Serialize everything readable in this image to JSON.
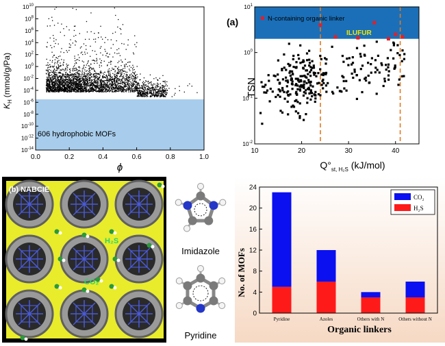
{
  "chart_data": [
    {
      "type": "scatter",
      "xlabel": "ϕ",
      "ylabel_main": "K",
      "ylabel_sub": "H",
      "ylabel_unit": "(mmol/g/Pa)",
      "xlim": [
        0,
        1
      ],
      "ylim_exp": [
        -14,
        10
      ],
      "x_ticks": [
        "0.0",
        "0.2",
        "0.4",
        "0.6",
        "0.8",
        "1.0"
      ],
      "y_tick_exponents": [
        "10",
        "8",
        "6",
        "4",
        "2",
        "0",
        "-2",
        "-4",
        "-6",
        "-8",
        "-10",
        "-12",
        "-14"
      ],
      "y_scale": "log",
      "threshold_log10": -5.5,
      "region_label": "606 hydrophobic MOFs",
      "region_color": "#a8cdec",
      "point_color": "#000000",
      "n_points_description": "dense cloud concentrated near K_H 1e-5 to 1e-2, spreading up to 1e10"
    },
    {
      "type": "scatter",
      "panel_label": "(a)",
      "xlabel_main": "Q°",
      "xlabel_sub": "st, H₂S",
      "xlabel_unit": "(kJ/mol)",
      "ylabel": "TSN",
      "xlim": [
        10,
        45
      ],
      "ylim_exp": [
        -2,
        1
      ],
      "x_ticks": [
        "10",
        "20",
        "30",
        "40"
      ],
      "y_tick_exponents": [
        "1",
        "0",
        "-1",
        "-2"
      ],
      "y_scale": "log",
      "highlight_band_log10": [
        0.3,
        1
      ],
      "band_color": "#1a6fb8",
      "dashed_lines_x": [
        24,
        41
      ],
      "dashed_color": "#e07a20",
      "legend": "N-containing organic linker",
      "annotation": "ILUFUR",
      "annotation_color": "#f2e800",
      "highlight_points": [
        [
          27.2,
          2.2
        ],
        [
          35.5,
          4.5
        ],
        [
          40.0,
          2.5
        ],
        [
          41.5,
          2.2
        ],
        [
          24.0,
          4.0
        ],
        [
          38.5,
          2.0
        ],
        [
          32.0,
          2.1
        ]
      ]
    },
    {
      "type": "bar",
      "ylabel": "No. of MOFs",
      "xlabel": "Organic linkers",
      "categories": [
        "Pyridine",
        "Azoles",
        "Others with N",
        "Others without N"
      ],
      "series": [
        {
          "name": "H₂S",
          "values": [
            5,
            6,
            3,
            3
          ],
          "color": "#ff1a1a"
        },
        {
          "name": "CO₂",
          "values": [
            18,
            6,
            1,
            3
          ],
          "color": "#0a10f0"
        }
      ],
      "stacked": true,
      "ylim": [
        0,
        24
      ],
      "y_ticks": [
        "0",
        "4",
        "8",
        "12",
        "16",
        "20",
        "24"
      ],
      "legend_position": "top-right"
    }
  ],
  "nabcie": {
    "panel_label": "(b) NABCIE",
    "h2s_label": "H₂S",
    "co2_label": "CO₂"
  },
  "molecules": {
    "imidazole": "Imidazole",
    "pyridine": "Pyridine"
  }
}
